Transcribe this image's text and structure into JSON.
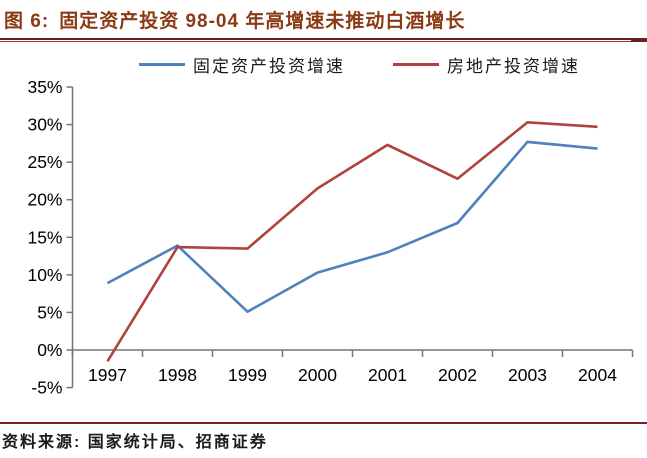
{
  "header": {
    "figure_label": "图 6:",
    "title": "固定资产投资 98-04 年高增速未推动白酒增长"
  },
  "chart_data": {
    "type": "line",
    "title": "固定资产投资 98-04 年高增速未推动白酒增长",
    "categories": [
      "1997",
      "1998",
      "1999",
      "2000",
      "2001",
      "2002",
      "2003",
      "2004"
    ],
    "series": [
      {
        "name": "固定资产投资增速",
        "color": "#4f81bd",
        "values": [
          8.9,
          13.9,
          5.1,
          10.3,
          13.0,
          16.9,
          27.7,
          26.8
        ]
      },
      {
        "name": "房地产投资增速",
        "color": "#b0433f",
        "values": [
          -1.5,
          13.7,
          13.5,
          21.5,
          27.3,
          22.8,
          30.3,
          29.7
        ]
      }
    ],
    "xlabel": "",
    "ylabel": "",
    "ylim": [
      -5,
      35
    ],
    "y_tick_step": 5,
    "y_ticks": [
      {
        "label": "35%",
        "value": 35
      },
      {
        "label": "30%",
        "value": 30
      },
      {
        "label": "25%",
        "value": 25
      },
      {
        "label": "20%",
        "value": 20
      },
      {
        "label": "15%",
        "value": 15
      },
      {
        "label": "10%",
        "value": 10
      },
      {
        "label": "5%",
        "value": 5
      },
      {
        "label": "0%",
        "value": 0
      },
      {
        "label": "-5%",
        "value": -5
      }
    ],
    "grid": false,
    "legend_position": "top",
    "x_axis_at_zero": true
  },
  "footer": {
    "source": "资料来源: 国家统计局、招商证券"
  },
  "colors": {
    "title_text": "#8b3a16",
    "header_divider": "#6e1f26",
    "source_divider": "#7e1f24",
    "axis": "#757575",
    "tick_text": "#000000",
    "series_blue": "#4f81bd",
    "series_red": "#b0433f"
  }
}
